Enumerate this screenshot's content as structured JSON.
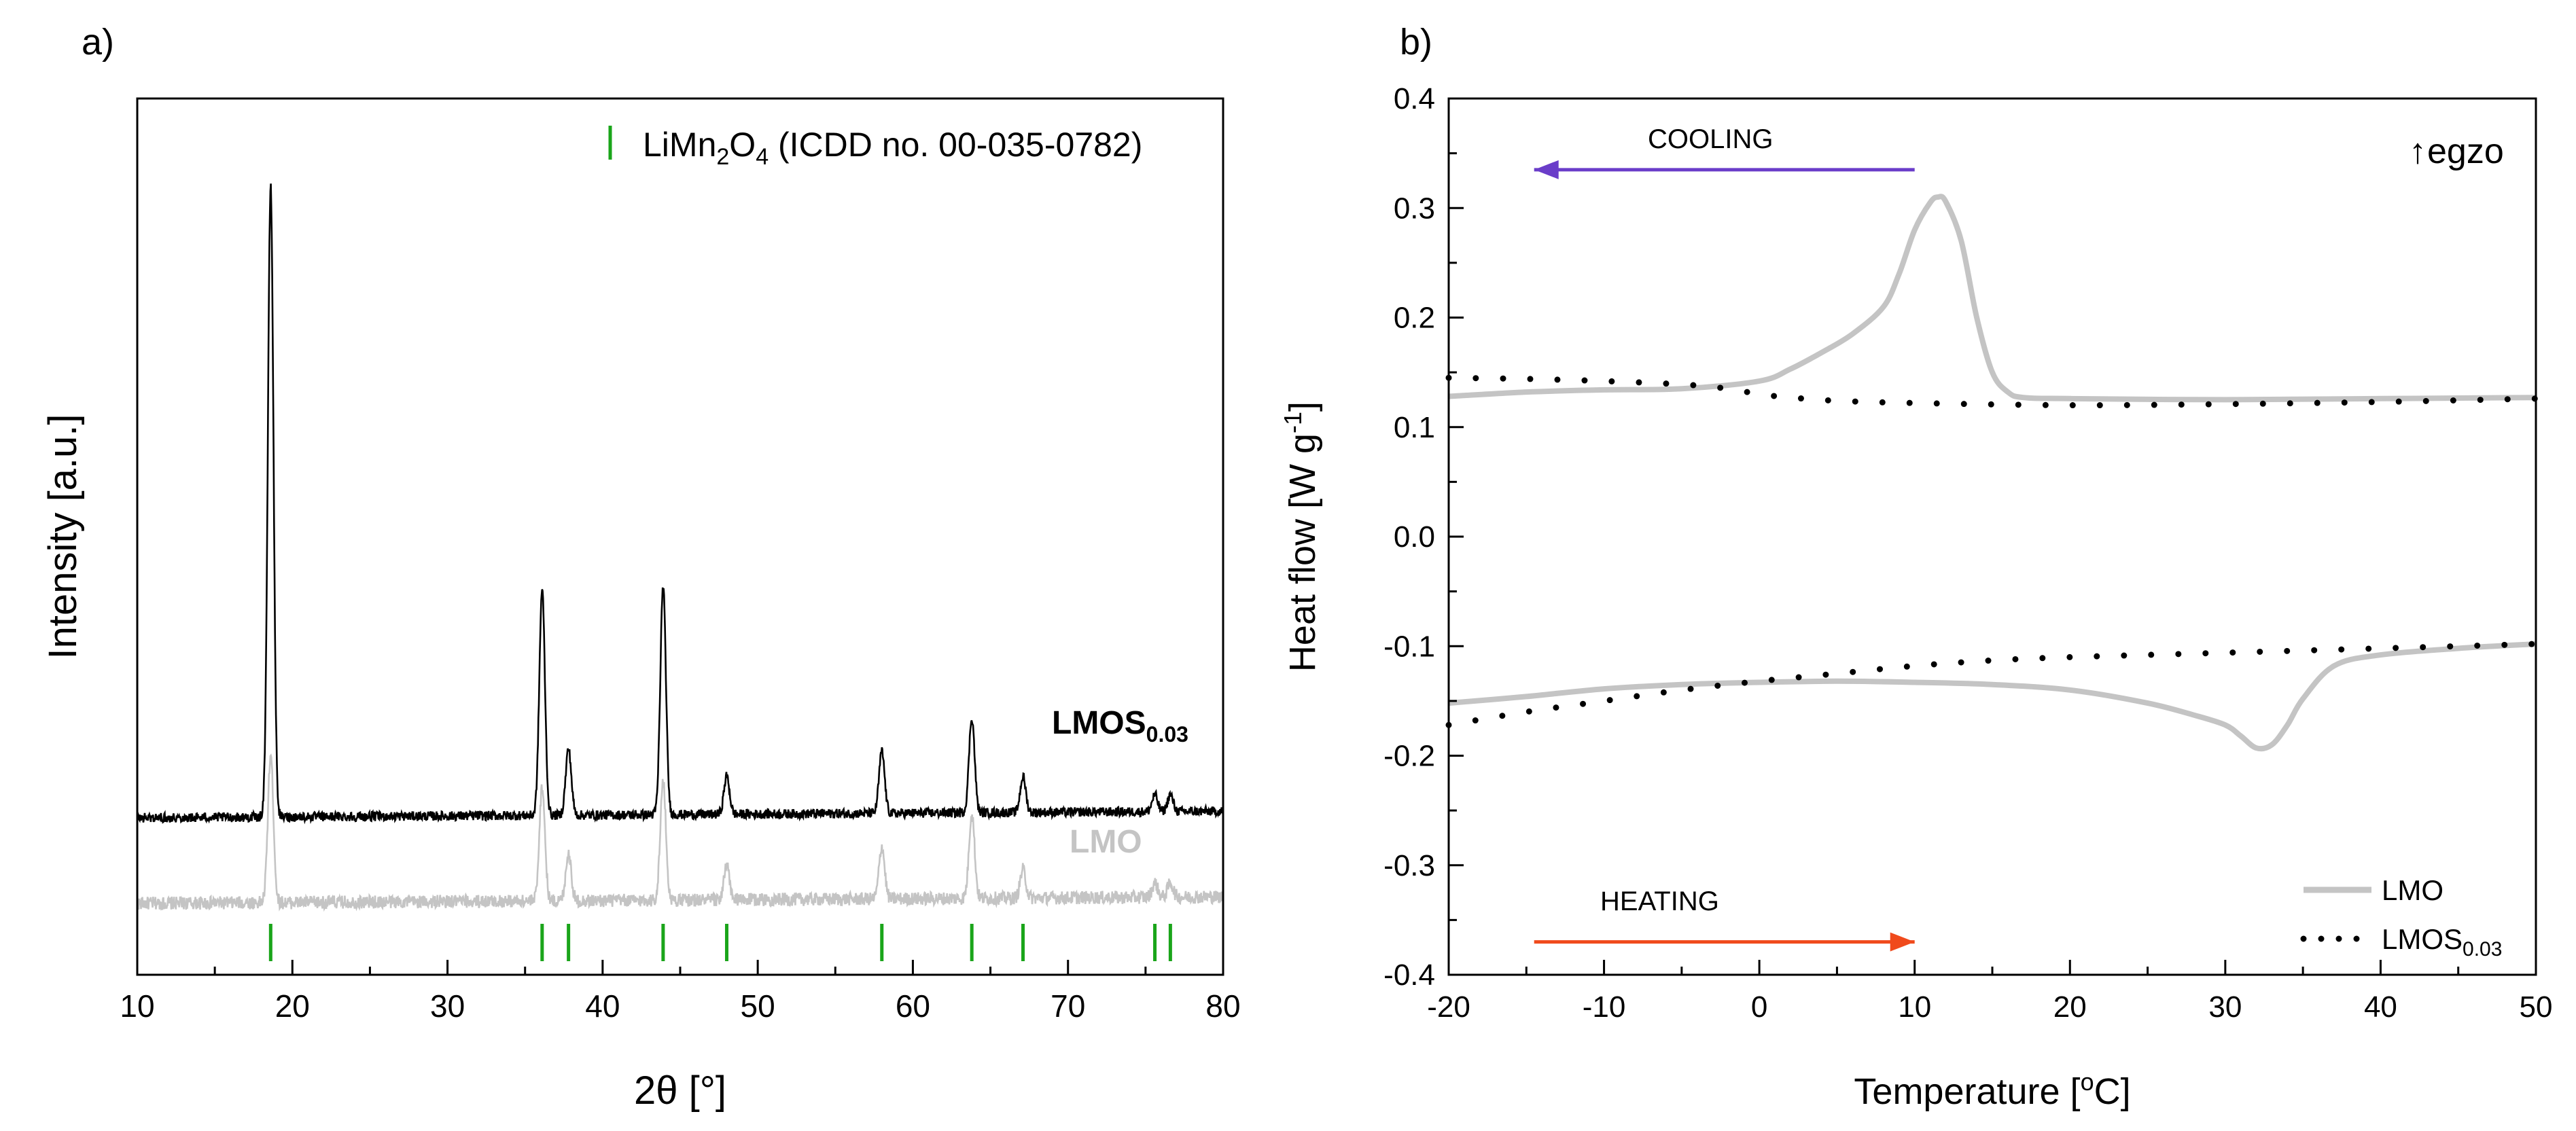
{
  "chart_data": [
    {
      "panel_label": "a)",
      "type": "line",
      "title": "",
      "xlabel_symbol": "2θ",
      "xlabel_unit": "°",
      "ylabel": "Intensity [a.u.]",
      "xlim": [
        10,
        80
      ],
      "xticks": [
        10,
        20,
        30,
        40,
        50,
        60,
        70,
        80
      ],
      "y_tick_labels_shown": false,
      "legend": {
        "marker": "|",
        "text_main": "LiMn",
        "sub1": "2",
        "text_mid": "O",
        "sub2": "4",
        "text_tail": " (ICDD no. 00-035-0782)",
        "color": "#1aa51a",
        "position": "top-right"
      },
      "series": [
        {
          "name": "LMOS",
          "name_sub": "0.03",
          "color": "#000000",
          "label_color": "#000000",
          "baseline": 0.36,
          "noise": 0.02,
          "peaks": [
            {
              "x": 18.6,
              "h": 2.65
            },
            {
              "x": 36.1,
              "h": 0.95
            },
            {
              "x": 37.8,
              "h": 0.28
            },
            {
              "x": 43.9,
              "h": 0.96
            },
            {
              "x": 48.0,
              "h": 0.16
            },
            {
              "x": 58.0,
              "h": 0.26
            },
            {
              "x": 63.8,
              "h": 0.4
            },
            {
              "x": 67.1,
              "h": 0.15
            },
            {
              "x": 75.6,
              "h": 0.07
            },
            {
              "x": 76.6,
              "h": 0.07
            }
          ]
        },
        {
          "name": "LMO",
          "name_sub": "",
          "color": "#c4c4c4",
          "label_color": "#c4c4c4",
          "baseline": 0.0,
          "noise": 0.028,
          "peaks": [
            {
              "x": 18.6,
              "h": 0.62
            },
            {
              "x": 36.1,
              "h": 0.48
            },
            {
              "x": 37.8,
              "h": 0.2
            },
            {
              "x": 43.9,
              "h": 0.5
            },
            {
              "x": 48.0,
              "h": 0.14
            },
            {
              "x": 58.0,
              "h": 0.22
            },
            {
              "x": 63.8,
              "h": 0.36
            },
            {
              "x": 67.1,
              "h": 0.12
            },
            {
              "x": 75.6,
              "h": 0.06
            },
            {
              "x": 76.6,
              "h": 0.06
            }
          ]
        }
      ],
      "reference_lines_2theta": [
        18.6,
        36.1,
        37.8,
        43.9,
        48.0,
        58.0,
        63.8,
        67.1,
        75.6,
        76.6
      ]
    },
    {
      "panel_label": "b)",
      "type": "line",
      "title": "",
      "xlabel_main": "Temperature [",
      "xlabel_sup": "o",
      "xlabel_tail": "C]",
      "ylabel_main": "Heat flow [W g",
      "ylabel_sup": "-1",
      "ylabel_tail": "]",
      "xlim": [
        -20,
        50
      ],
      "ylim": [
        -0.4,
        0.4
      ],
      "xticks": [
        -20,
        -10,
        0,
        10,
        20,
        30,
        40,
        50
      ],
      "xtick_labels": [
        "-20",
        "-10",
        "0",
        "10",
        "20",
        "30",
        "40",
        "50"
      ],
      "yticks": [
        -0.4,
        -0.3,
        -0.2,
        -0.1,
        0.0,
        0.1,
        0.2,
        0.3,
        0.4
      ],
      "ytick_labels": [
        "-0.4",
        "-0.3",
        "-0.2",
        "-0.1",
        "0.0",
        "0.1",
        "0.2",
        "0.3",
        "0.4"
      ],
      "annotations": {
        "cooling": {
          "text": "COOLING",
          "arrow_from_x": 10,
          "arrow_to_x": -14.5,
          "arrow_y": 0.335,
          "color": "#6a3dc9"
        },
        "heating": {
          "text": "HEATING",
          "arrow_from_x": -14.5,
          "arrow_to_x": 10,
          "arrow_y": -0.37,
          "color": "#f04a1c"
        },
        "egzo": {
          "text": "egzo",
          "symbol": "↑"
        }
      },
      "legend": {
        "position": "bottom-right",
        "entries": [
          {
            "name": "LMO",
            "sub": "",
            "style": "solid"
          },
          {
            "name": "LMOS",
            "sub": "0.03",
            "style": "dotted"
          }
        ]
      },
      "series": [
        {
          "name": "LMO cooling",
          "style": "solid",
          "color": "#c4c4c4",
          "x": [
            -20,
            -15,
            -10,
            -5,
            0,
            2,
            4,
            6,
            8,
            9,
            10,
            11,
            11.5,
            12,
            13,
            14,
            15,
            16,
            17,
            20,
            30,
            40,
            50
          ],
          "y": [
            0.128,
            0.132,
            0.134,
            0.135,
            0.142,
            0.153,
            0.168,
            0.185,
            0.21,
            0.24,
            0.28,
            0.305,
            0.31,
            0.306,
            0.27,
            0.2,
            0.15,
            0.132,
            0.127,
            0.126,
            0.125,
            0.126,
            0.127
          ]
        },
        {
          "name": "LMO heating",
          "style": "solid",
          "color": "#c4c4c4",
          "x": [
            -20,
            -15,
            -10,
            -5,
            0,
            5,
            10,
            15,
            20,
            25,
            28,
            30,
            31,
            32,
            33,
            34,
            35,
            37,
            40,
            45,
            50
          ],
          "y": [
            -0.152,
            -0.146,
            -0.139,
            -0.135,
            -0.133,
            -0.132,
            -0.133,
            -0.135,
            -0.14,
            -0.152,
            -0.163,
            -0.172,
            -0.182,
            -0.193,
            -0.19,
            -0.172,
            -0.148,
            -0.118,
            -0.108,
            -0.102,
            -0.098
          ]
        },
        {
          "name": "LMOS0.03 cooling",
          "style": "dotted",
          "color": "#000000",
          "x": [
            -20,
            -15,
            -10,
            -5,
            -2,
            0,
            2,
            5,
            10,
            20,
            30,
            40,
            50
          ],
          "y": [
            0.145,
            0.144,
            0.142,
            0.139,
            0.135,
            0.13,
            0.127,
            0.124,
            0.122,
            0.12,
            0.121,
            0.123,
            0.126
          ]
        },
        {
          "name": "LMOS0.03 heating",
          "style": "dotted",
          "color": "#000000",
          "x": [
            -20,
            -15,
            -10,
            -5,
            0,
            5,
            10,
            15,
            20,
            30,
            40,
            50
          ],
          "y": [
            -0.172,
            -0.16,
            -0.15,
            -0.14,
            -0.132,
            -0.125,
            -0.118,
            -0.113,
            -0.11,
            -0.106,
            -0.102,
            -0.098
          ]
        }
      ]
    }
  ]
}
